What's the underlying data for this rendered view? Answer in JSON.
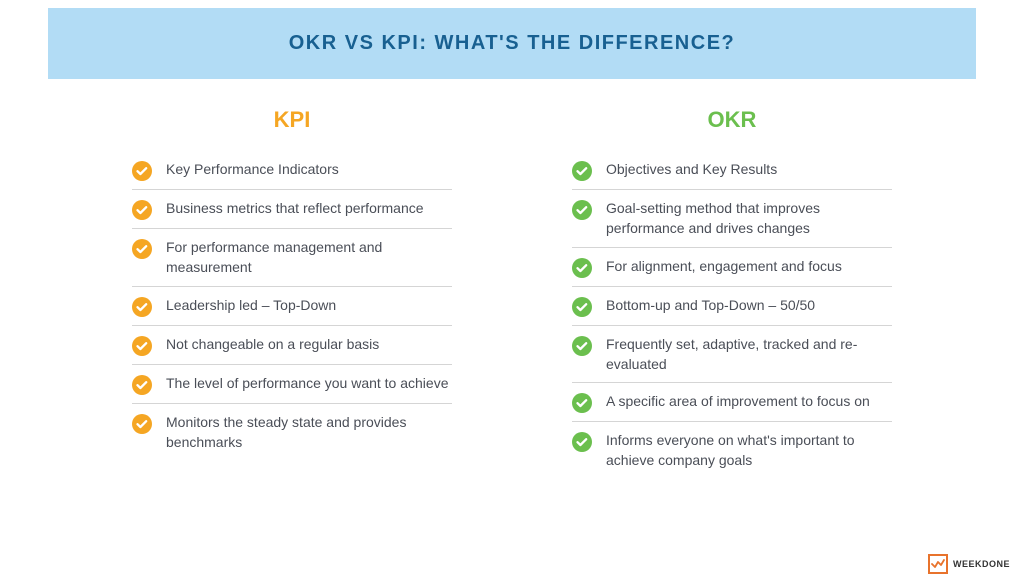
{
  "header": {
    "title": "OKR VS KPI: WHAT'S THE DIFFERENCE?",
    "background_color": "#b2dcf5",
    "title_color": "#186091",
    "title_fontsize": 20
  },
  "kpi": {
    "title": "KPI",
    "title_color": "#f5a623",
    "icon_color": "#f5a623",
    "items": [
      "Key Performance Indicators",
      "Business metrics that reflect performance",
      "For performance management and measurement",
      "Leadership led – Top-Down",
      "Not changeable on a regular basis",
      "The level of performance you want to achieve",
      "Monitors the steady state and provides benchmarks"
    ]
  },
  "okr": {
    "title": "OKR",
    "title_color": "#6bbf4e",
    "icon_color": "#6bbf4e",
    "items": [
      "Objectives and Key Results",
      "Goal-setting method that improves performance and drives changes",
      "For alignment, engagement and focus",
      "Bottom-up and Top-Down – 50/50",
      "Frequently set, adaptive, tracked and re-evaluated",
      "A specific area of improvement to focus on",
      "Informs everyone on what's important to achieve company goals"
    ]
  },
  "logo": {
    "text": "WEEKDONE",
    "border_color": "#e8732c"
  },
  "style": {
    "text_color": "#4a4e57",
    "divider_color": "#d5d5d5",
    "background_color": "#ffffff"
  }
}
